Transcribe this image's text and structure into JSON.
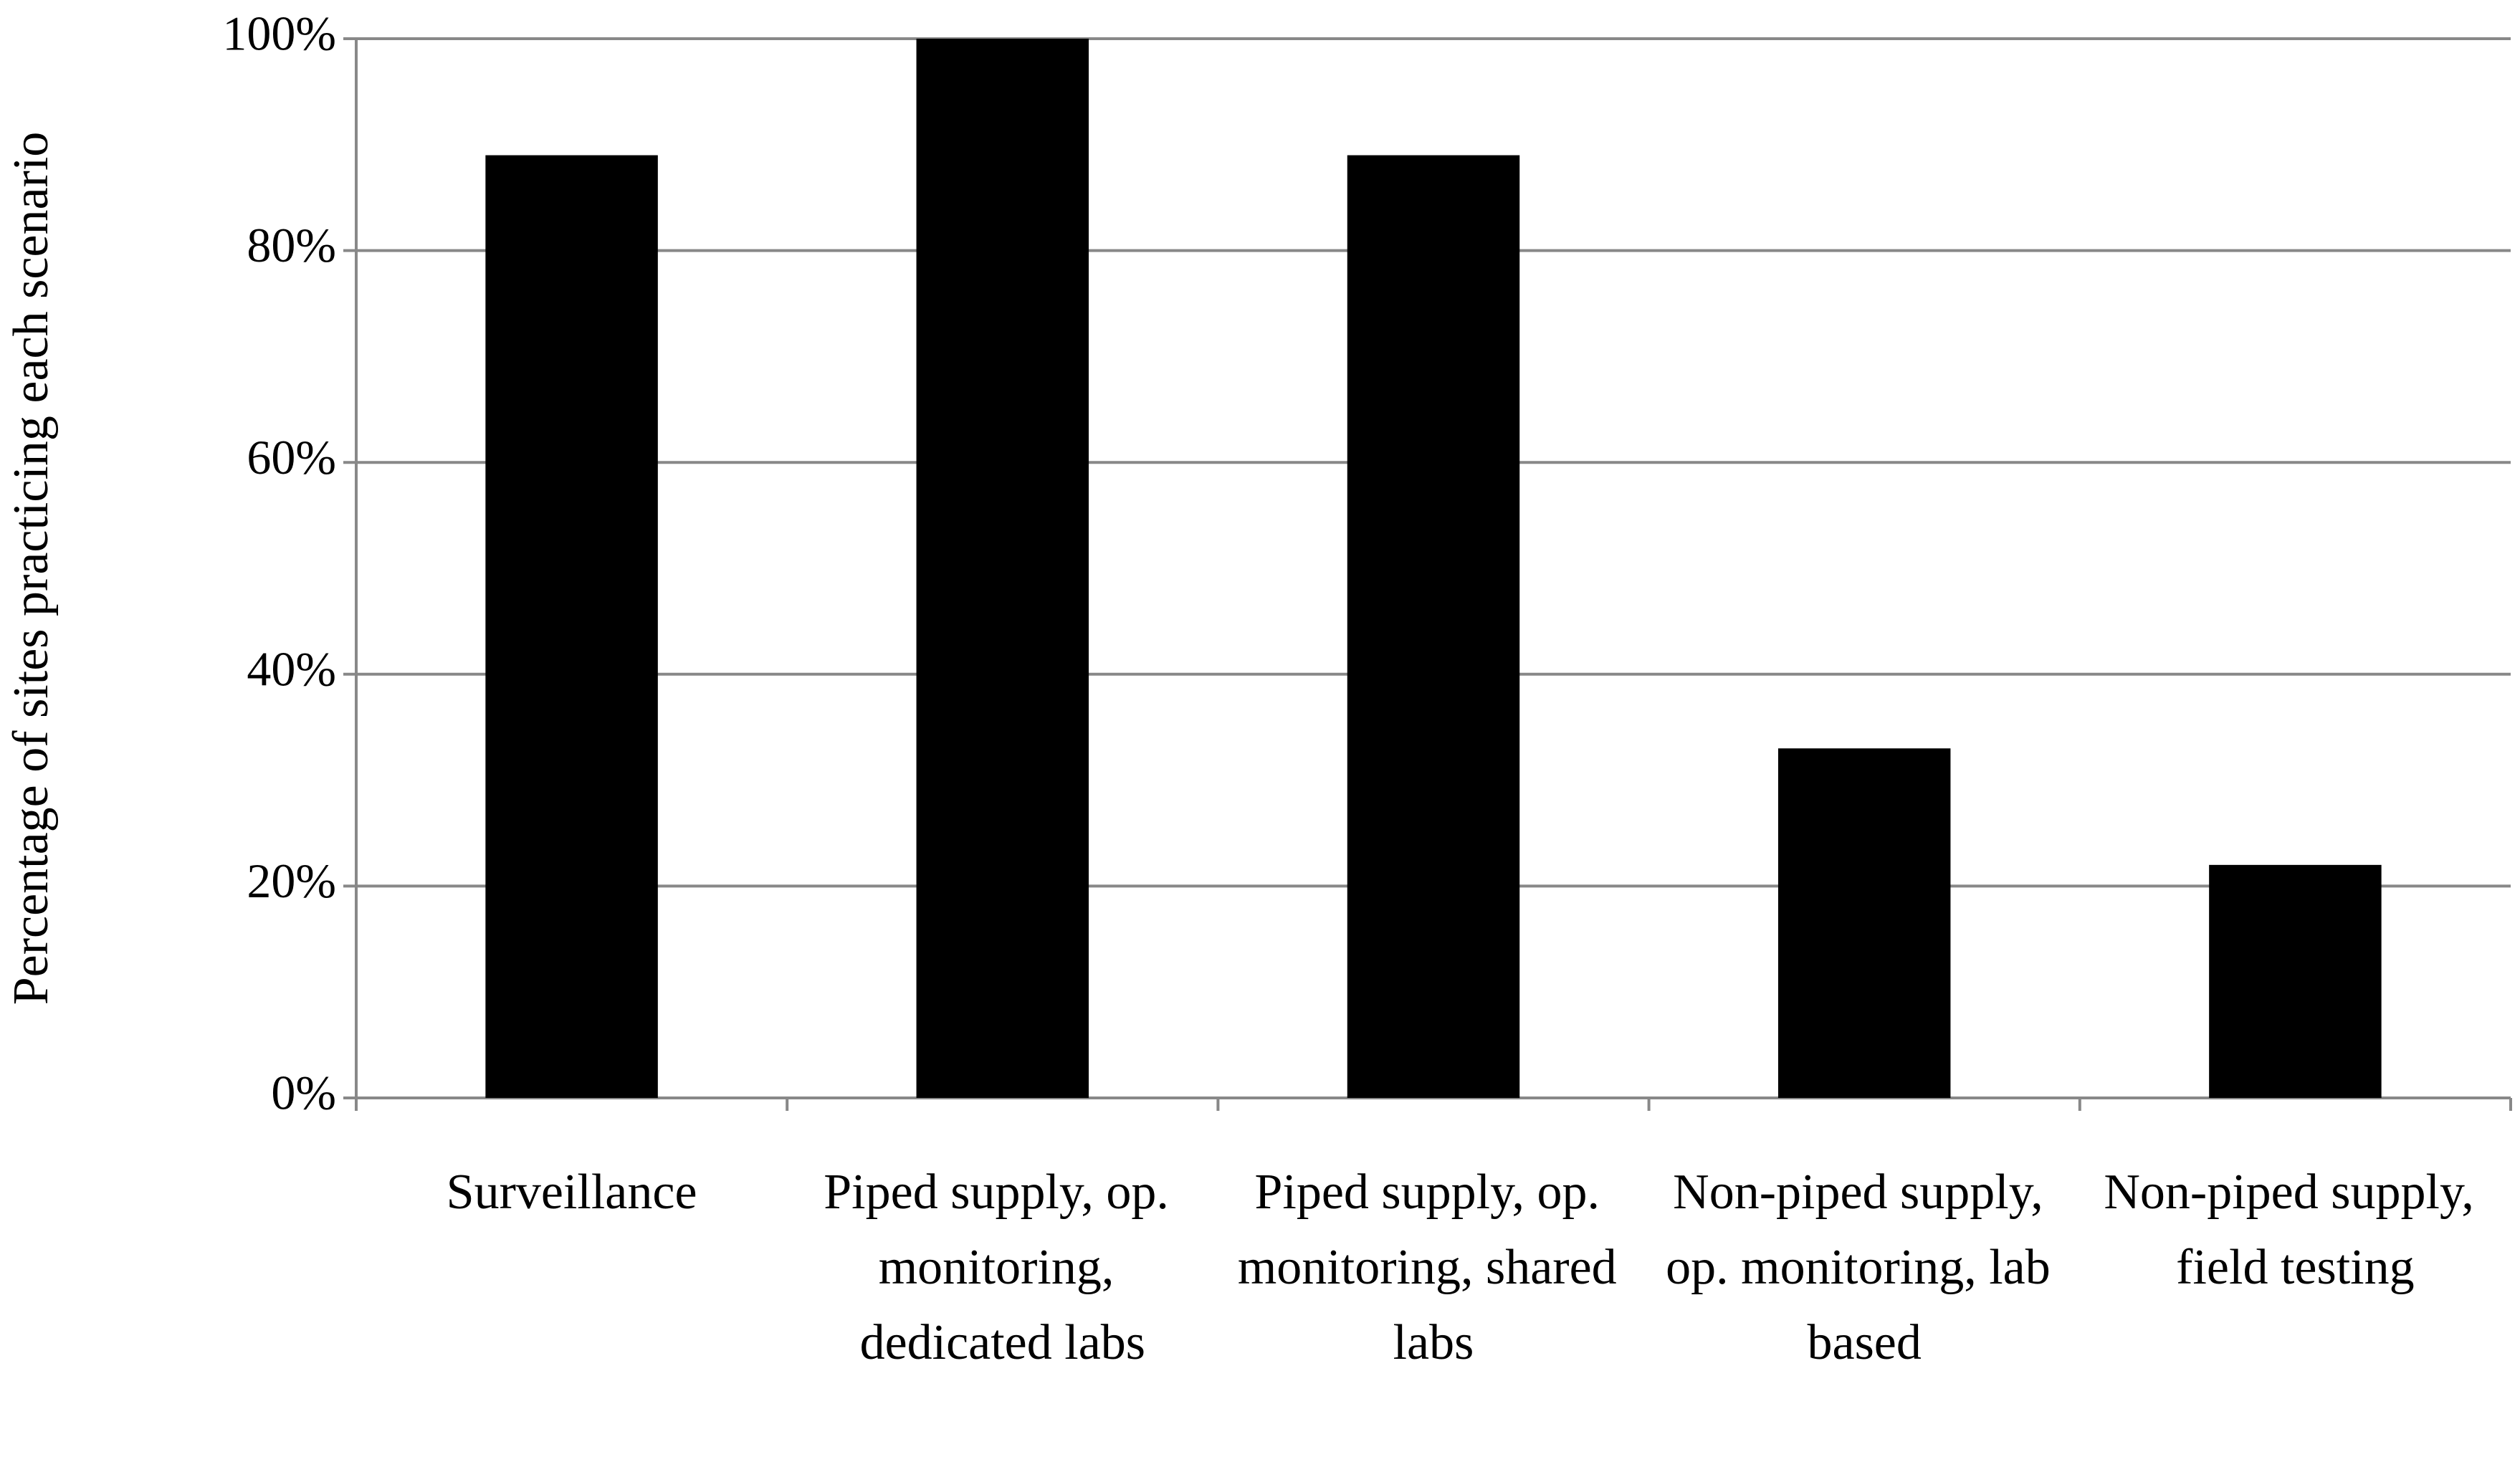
{
  "chart_data": {
    "type": "bar",
    "y_label": "Percentage of sites practicing each scenario",
    "categories": [
      "Surveillance",
      "Piped supply, op. monitoring, dedicated labs",
      "Piped supply, op. monitoring, shared labs",
      "Non-piped supply, op. monitoring, lab based",
      "Non-piped supply, field testing"
    ],
    "values": [
      89,
      100,
      89,
      33,
      22
    ],
    "color": "#000000",
    "ylim": [
      0,
      100
    ],
    "yticks": [
      {
        "value": 0,
        "label": "0%"
      },
      {
        "value": 20,
        "label": "20%"
      },
      {
        "value": 40,
        "label": "40%"
      },
      {
        "value": 60,
        "label": "60%"
      },
      {
        "value": 80,
        "label": "80%"
      },
      {
        "value": 100,
        "label": "100%"
      }
    ],
    "grid": true
  }
}
